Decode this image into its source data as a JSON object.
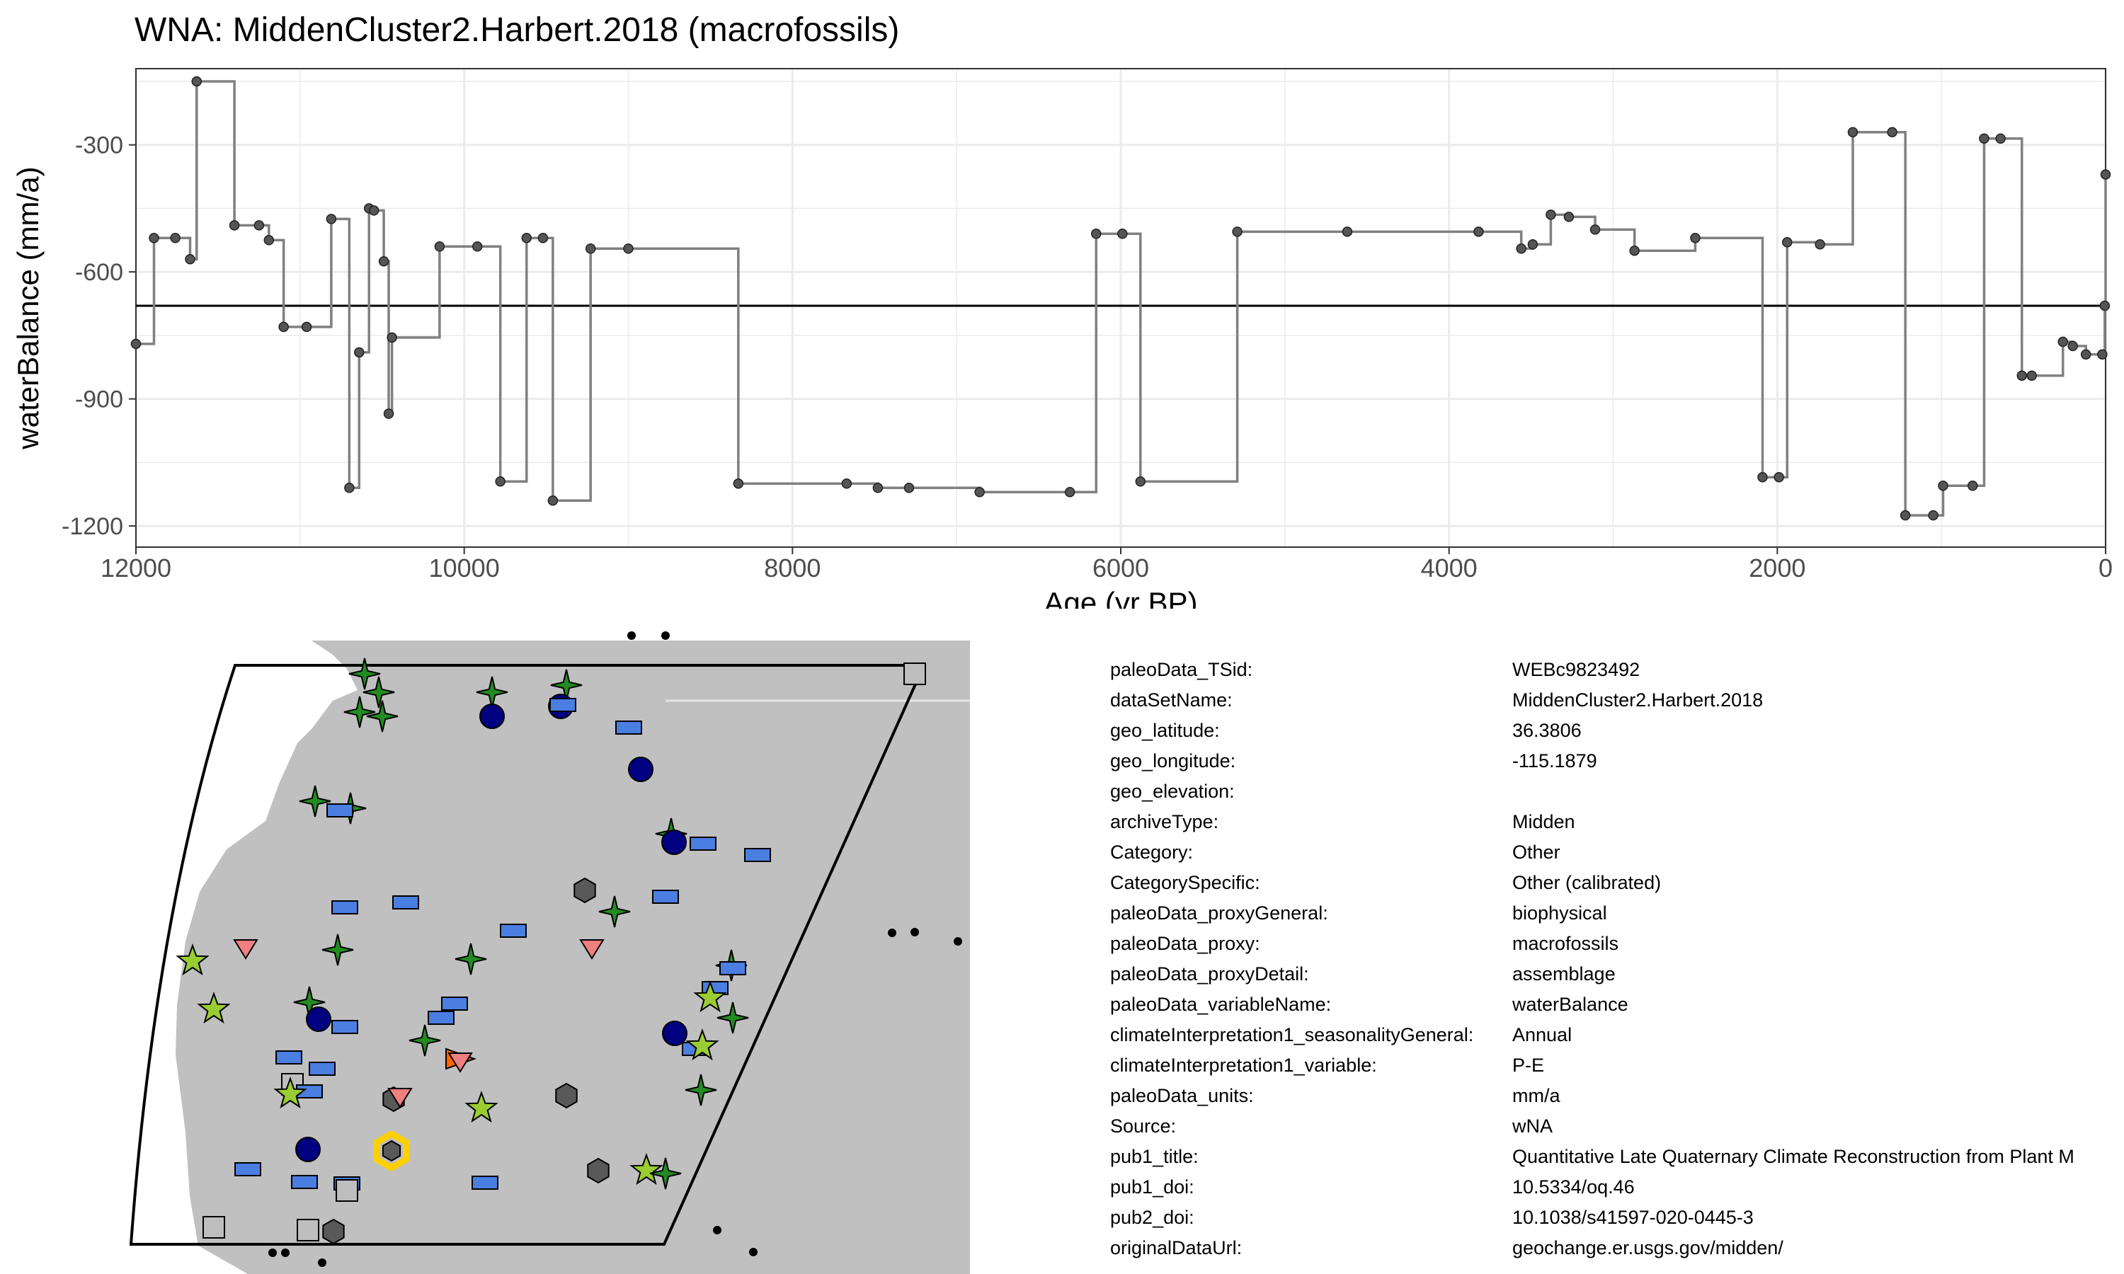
{
  "title": "WNA: MiddenCluster2.Harbert.2018 (macrofossils)",
  "chart_data": {
    "type": "line",
    "step": true,
    "title": "WNA: MiddenCluster2.Harbert.2018 (macrofossils)",
    "xlabel": "Age (yr BP)",
    "ylabel": "waterBalance (mm/a)",
    "xlim": [
      12000,
      0
    ],
    "ylim": [
      -1250,
      -120
    ],
    "x_ticks": [
      12000,
      10000,
      8000,
      6000,
      4000,
      2000,
      0
    ],
    "y_ticks": [
      -300,
      -600,
      -900,
      -1200
    ],
    "grid": true,
    "mean_line": -680,
    "series": [
      {
        "x": [
          12000,
          11890,
          11760,
          11670,
          11630,
          11400,
          11250,
          11190,
          11100,
          10960,
          10810,
          10700,
          10640,
          10580,
          10550,
          10490,
          10460,
          10440,
          10150,
          9920,
          9780,
          9620,
          9520,
          9460,
          9230,
          9000,
          8330,
          7670,
          7480,
          7290,
          6860,
          6310,
          6150,
          5990,
          5880,
          5290,
          4620,
          3820,
          3560,
          3490,
          3380,
          3270,
          3110,
          2870,
          2500,
          2090,
          1990,
          1940,
          1740,
          1540,
          1300,
          1220,
          1050,
          990,
          810,
          740,
          640,
          510,
          450,
          260,
          200,
          120,
          20,
          5,
          0
        ],
        "y": [
          -770,
          -520,
          -520,
          -570,
          -150,
          -490,
          -490,
          -525,
          -730,
          -730,
          -475,
          -1110,
          -790,
          -450,
          -455,
          -575,
          -935,
          -755,
          -540,
          -540,
          -1095,
          -520,
          -520,
          -1140,
          -545,
          -545,
          -1100,
          -1100,
          -1110,
          -1110,
          -1120,
          -1120,
          -510,
          -510,
          -1095,
          -505,
          -505,
          -505,
          -545,
          -535,
          -465,
          -470,
          -500,
          -550,
          -520,
          -1085,
          -1085,
          -530,
          -535,
          -270,
          -270,
          -1175,
          -1175,
          -1105,
          -1105,
          -285,
          -285,
          -845,
          -845,
          -765,
          -775,
          -795,
          -795,
          -680,
          -370
        ]
      }
    ]
  },
  "metadata": [
    {
      "key": "paleoData_TSid:",
      "value": "WEBc9823492"
    },
    {
      "key": "dataSetName:",
      "value": "MiddenCluster2.Harbert.2018"
    },
    {
      "key": "geo_latitude:",
      "value": "36.3806"
    },
    {
      "key": "geo_longitude:",
      "value": "-115.1879"
    },
    {
      "key": "geo_elevation:",
      "value": ""
    },
    {
      "key": "archiveType:",
      "value": "Midden"
    },
    {
      "key": "Category:",
      "value": "Other"
    },
    {
      "key": "CategorySpecific:",
      "value": "Other (calibrated)"
    },
    {
      "key": "paleoData_proxyGeneral:",
      "value": "biophysical"
    },
    {
      "key": "paleoData_proxy:",
      "value": "macrofossils"
    },
    {
      "key": "paleoData_proxyDetail:",
      "value": "assemblage"
    },
    {
      "key": "paleoData_variableName:",
      "value": "waterBalance"
    },
    {
      "key": "climateInterpretation1_seasonalityGeneral:",
      "value": "Annual"
    },
    {
      "key": "climateInterpretation1_variable:",
      "value": "P-E"
    },
    {
      "key": "paleoData_units:",
      "value": "mm/a"
    },
    {
      "key": "Source:",
      "value": "wNA"
    },
    {
      "key": "pub1_title:",
      "value": "Quantitative Late Quaternary Climate Reconstruction from Plant M"
    },
    {
      "key": "pub1_doi:",
      "value": "10.5334/oq.46"
    },
    {
      "key": "pub2_doi:",
      "value": "10.1038/s41597-020-0445-3"
    },
    {
      "key": "originalDataUrl:",
      "value": "geochange.er.usgs.gov/midden/"
    }
  ],
  "colors": {
    "series": "#808080",
    "point": "#555555",
    "mean": "#000000",
    "grid": "#ebebeb",
    "land": "#c0c0c0",
    "sea": "#ffffff",
    "dark_green": "#228b22",
    "light_green": "#9acd32",
    "blue": "#4a7ee0",
    "navy": "#000080",
    "pink": "#f08080",
    "orange": "#ff6600",
    "gray": "#595959",
    "light_gray": "#bebebe",
    "highlight": "#ffd000"
  },
  "map_symbols": {
    "dark-green-star": "#228b22",
    "light-green-star": "#9acd32",
    "blue-rectangle": "#4a7ee0",
    "navy-circle": "#000080",
    "pink-triangle": "#f08080",
    "orange-triangle": "#ff6600",
    "gray-hexagon": "#595959",
    "gray-square": "#bebebe",
    "highlight-hexagon": "#ffd000"
  }
}
